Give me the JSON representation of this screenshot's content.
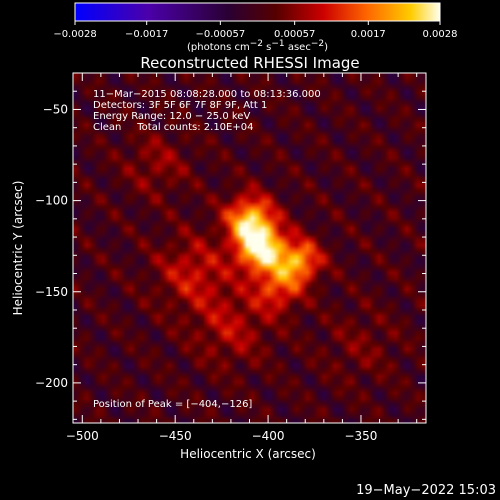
{
  "chart_data": {
    "type": "heatmap",
    "title": "Reconstructed RHESSI Image",
    "xlabel": "Heliocentric X (arcsec)",
    "ylabel": "Heliocentric Y (arcsec)",
    "xlim": [
      -505,
      -315
    ],
    "ylim": [
      -222,
      -30
    ],
    "xticks": [
      -500,
      -450,
      -400,
      -350
    ],
    "yticks": [
      -50,
      -100,
      -150,
      -200
    ],
    "xtick_labels": [
      "−500",
      "−450",
      "−400",
      "−350"
    ],
    "ytick_labels": [
      "−50",
      "−100",
      "−150",
      "−200"
    ],
    "colorbar": {
      "min": -0.0028,
      "max": 0.0028,
      "ticks": [
        -0.0028,
        -0.0017,
        -0.00057,
        0.00057,
        0.0017,
        0.0028
      ],
      "tick_labels": [
        "−0.0028",
        "−0.0017",
        "−0.00057",
        "0.00057",
        "0.0017",
        "0.0028"
      ],
      "unit_label": "(photons cm",
      "unit_exp1": "−2",
      "unit_mid": " s",
      "unit_exp2": "−1",
      "unit_mid2": " asec",
      "unit_exp3": "−2",
      "unit_end": ")",
      "colormap": [
        "#0000ff",
        "#4b00aa",
        "#2a0033",
        "#550000",
        "#cc0000",
        "#ff6600",
        "#ffcc00",
        "#ffffee"
      ]
    },
    "annotations": {
      "line1": "11−Mar−2015 08:08:28.000 to 08:13:36.000",
      "line2": "Detectors: 3F 5F 6F 7F 8F 9F, Att 1",
      "line3": "Energy Range: 12.0 − 25.0 keV",
      "line4": "Clean     Total counts: 2.10E+04",
      "peak": "Position of Peak = [−404,−126]"
    },
    "peak": [
      -404,
      -126
    ],
    "sources": [
      {
        "x": -404,
        "y": -126,
        "amp": 0.0028,
        "sigma": 9
      },
      {
        "x": -410,
        "y": -110,
        "amp": 0.0022,
        "sigma": 9
      },
      {
        "x": -383,
        "y": -133,
        "amp": 0.002,
        "sigma": 8
      },
      {
        "x": -395,
        "y": -148,
        "amp": 0.0014,
        "sigma": 9
      },
      {
        "x": -440,
        "y": -140,
        "amp": 0.001,
        "sigma": 14
      },
      {
        "x": -420,
        "y": -170,
        "amp": 0.0008,
        "sigma": 14
      },
      {
        "x": -460,
        "y": -80,
        "amp": 0.0006,
        "sigma": 12
      },
      {
        "x": -350,
        "y": -180,
        "amp": 0.0004,
        "sigma": 14
      }
    ],
    "footer": "19−May−2022 15:03"
  }
}
